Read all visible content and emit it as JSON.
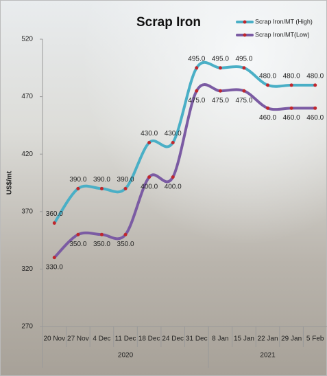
{
  "chart_data": {
    "type": "line",
    "title": "Scrap Iron",
    "y_label": "US$/mt",
    "categories": [
      "20 Nov",
      "27 Nov",
      "4 Dec",
      "11 Dec",
      "18 Dec",
      "24 Dec",
      "31 Dec",
      "8 Jan",
      "15 Jan",
      "22 Jan",
      "29 Jan",
      "5 Feb"
    ],
    "x_groups": [
      {
        "label": "2020",
        "span": 7
      },
      {
        "label": "2021",
        "span": 5
      }
    ],
    "series": [
      {
        "name": "Scrap Iron/MT (High)",
        "color": "#4aafc6",
        "values": [
          360,
          390,
          390,
          390,
          430,
          430,
          495,
          495,
          495,
          480,
          480,
          480
        ],
        "value_labels": [
          "360.0",
          "390.0",
          "390.0",
          "390.0",
          "430.0",
          "430.0",
          "495.0",
          "495.0",
          "495.0",
          "480.0",
          "480.0",
          "480.0"
        ]
      },
      {
        "name": "Scrap Iron/MT(Low)",
        "color": "#7b5ba3",
        "values": [
          330,
          350,
          350,
          350,
          400,
          400,
          475,
          475,
          475,
          460,
          460,
          460
        ],
        "value_labels": [
          "330.0",
          "350.0",
          "350.0",
          "350.0",
          "400.0",
          "400.0",
          "475.0",
          "475.0",
          "475.0",
          "460.0",
          "460.0",
          "460.0"
        ]
      }
    ],
    "marker_color": "#c0272d",
    "ylim": [
      270,
      520
    ],
    "yticks": [
      270,
      320,
      370,
      420,
      470,
      520
    ],
    "smooth": true,
    "legend": "top-right"
  }
}
